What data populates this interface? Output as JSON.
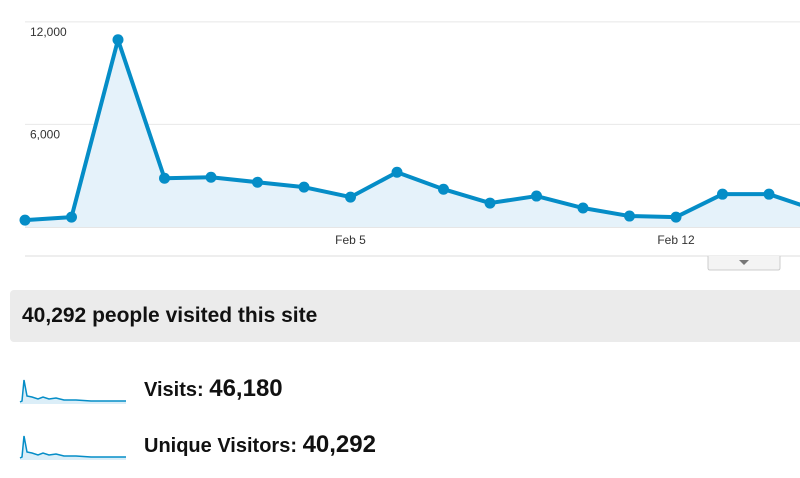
{
  "chart_data": {
    "type": "line",
    "categories": [
      null,
      null,
      null,
      null,
      null,
      null,
      null,
      "Feb 5",
      null,
      null,
      null,
      null,
      null,
      null,
      "Feb 12",
      null,
      null,
      null
    ],
    "values": [
      400,
      580,
      10950,
      2850,
      2910,
      2620,
      2330,
      1750,
      3200,
      2210,
      1400,
      1810,
      1110,
      640,
      580,
      1920,
      1920,
      1000
    ],
    "color": "#058dc7",
    "ylim": [
      0,
      12400
    ],
    "yticks": [
      {
        "value": 6000,
        "label": "6,000"
      },
      {
        "value": 12000,
        "label": "12,000"
      }
    ],
    "grid": true
  },
  "summary": {
    "headline": "40,292 people visited this site",
    "metrics": [
      {
        "label": "Visits:",
        "value": "46,180"
      },
      {
        "label": "Unique Visitors:",
        "value": "40,292"
      }
    ]
  }
}
